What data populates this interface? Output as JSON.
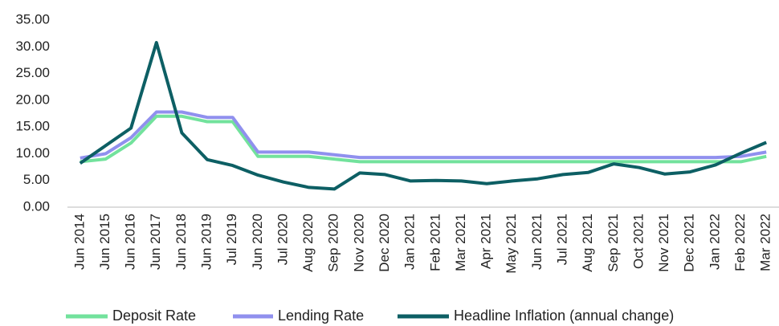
{
  "chart_data": {
    "type": "line",
    "categories": [
      "Jun 2014",
      "Jun 2015",
      "Jun 2016",
      "Jun 2017",
      "Jun 2018",
      "Jun 2019",
      "Jul 2019",
      "Jun 2020",
      "Jul 2020",
      "Aug 2020",
      "Sep 2020",
      "Nov 2020",
      "Dec 2020",
      "Jan 2021",
      "Feb 2021",
      "Mar 2021",
      "Apr 2021",
      "May 2021",
      "Jun 2021",
      "Jul 2021",
      "Aug 2021",
      "Sep 2021",
      "Oct 2021",
      "Nov 2021",
      "Dec 2021",
      "Jan 2022",
      "Feb 2022",
      "Mar 2022"
    ],
    "series": [
      {
        "name": "Deposit Rate",
        "color": "#72e29c",
        "values": [
          8.5,
          9.0,
          12.0,
          17.0,
          17.0,
          16.0,
          16.0,
          9.5,
          9.5,
          9.5,
          9.0,
          8.5,
          8.5,
          8.5,
          8.5,
          8.5,
          8.5,
          8.5,
          8.5,
          8.5,
          8.5,
          8.5,
          8.5,
          8.5,
          8.5,
          8.5,
          8.5,
          9.5
        ]
      },
      {
        "name": "Lending Rate",
        "color": "#9090ee",
        "values": [
          9.2,
          10.0,
          13.0,
          17.8,
          17.8,
          16.8,
          16.8,
          10.3,
          10.3,
          10.3,
          9.8,
          9.3,
          9.3,
          9.3,
          9.3,
          9.3,
          9.3,
          9.3,
          9.3,
          9.3,
          9.3,
          9.3,
          9.3,
          9.3,
          9.3,
          9.3,
          9.5,
          10.3
        ]
      },
      {
        "name": "Headline Inflation (annual change)",
        "color": "#0d5f64",
        "values": [
          8.2,
          11.5,
          14.8,
          30.8,
          13.9,
          8.9,
          7.8,
          6.0,
          4.7,
          3.7,
          3.4,
          6.4,
          6.1,
          4.9,
          5.0,
          4.9,
          4.4,
          4.9,
          5.3,
          6.1,
          6.5,
          8.1,
          7.4,
          6.2,
          6.6,
          7.9,
          10.1,
          12.1
        ]
      }
    ],
    "ylim": [
      0,
      35
    ],
    "yticks": [
      {
        "value": 0,
        "label": "0.00"
      },
      {
        "value": 5,
        "label": "5.00"
      },
      {
        "value": 10,
        "label": "10.00"
      },
      {
        "value": 15,
        "label": "15.00"
      },
      {
        "value": 20,
        "label": "20.00"
      },
      {
        "value": 25,
        "label": "25.00"
      },
      {
        "value": 30,
        "label": "30.00"
      },
      {
        "value": 35,
        "label": "35.00"
      }
    ]
  }
}
